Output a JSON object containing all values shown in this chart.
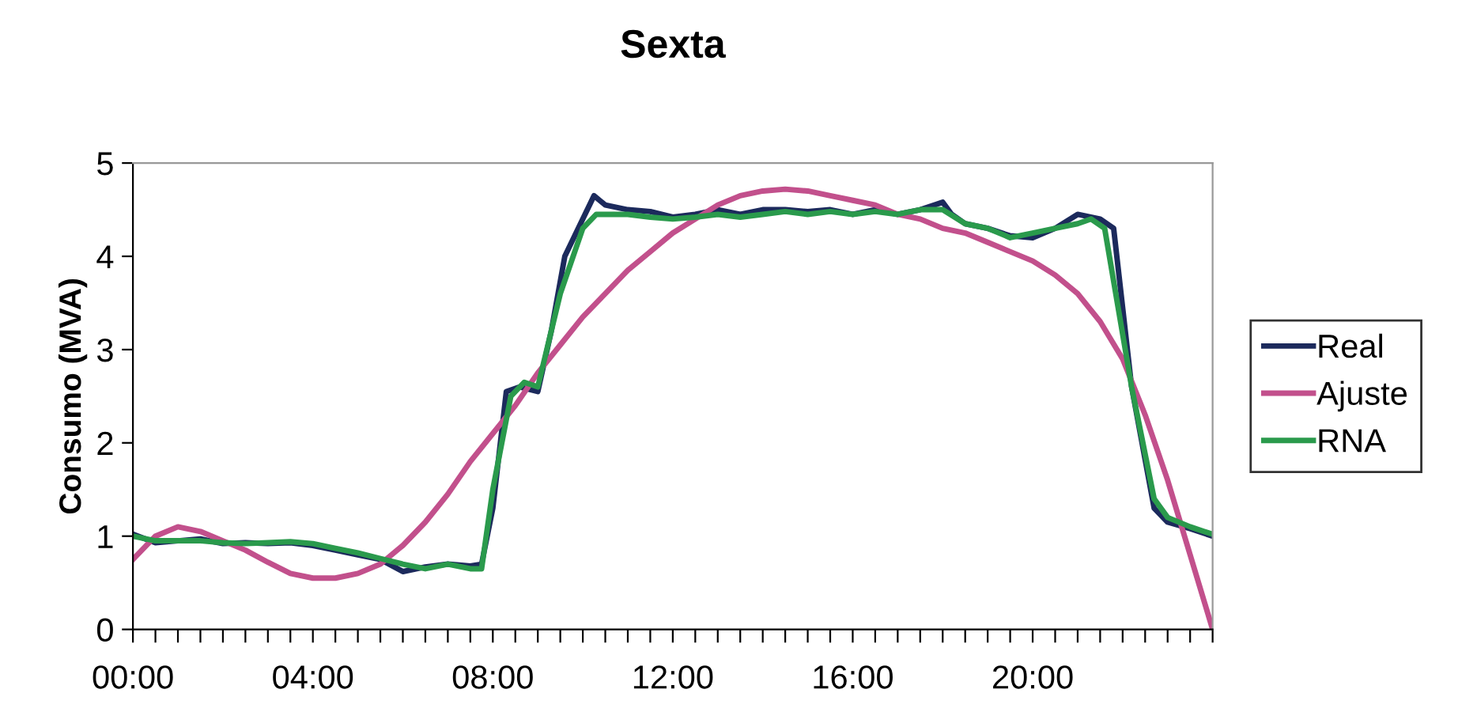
{
  "chart_data": {
    "type": "line",
    "title": "Sexta",
    "ylabel": "Consumo (MVA)",
    "xlim": [
      0,
      24
    ],
    "ylim": [
      0,
      5
    ],
    "yticks": [
      0,
      1,
      2,
      3,
      4,
      5
    ],
    "xticks": [
      {
        "value": 0,
        "label": "00:00"
      },
      {
        "value": 0.5,
        "label": null
      },
      {
        "value": 1,
        "label": null
      },
      {
        "value": 1.5,
        "label": null
      },
      {
        "value": 2,
        "label": null
      },
      {
        "value": 2.5,
        "label": null
      },
      {
        "value": 3,
        "label": null
      },
      {
        "value": 3.5,
        "label": null
      },
      {
        "value": 4,
        "label": "04:00"
      },
      {
        "value": 4.5,
        "label": null
      },
      {
        "value": 5,
        "label": null
      },
      {
        "value": 5.5,
        "label": null
      },
      {
        "value": 6,
        "label": null
      },
      {
        "value": 6.5,
        "label": null
      },
      {
        "value": 7,
        "label": null
      },
      {
        "value": 7.5,
        "label": null
      },
      {
        "value": 8,
        "label": "08:00"
      },
      {
        "value": 8.5,
        "label": null
      },
      {
        "value": 9,
        "label": null
      },
      {
        "value": 9.5,
        "label": null
      },
      {
        "value": 10,
        "label": null
      },
      {
        "value": 10.5,
        "label": null
      },
      {
        "value": 11,
        "label": null
      },
      {
        "value": 11.5,
        "label": null
      },
      {
        "value": 12,
        "label": "12:00"
      },
      {
        "value": 12.5,
        "label": null
      },
      {
        "value": 13,
        "label": null
      },
      {
        "value": 13.5,
        "label": null
      },
      {
        "value": 14,
        "label": null
      },
      {
        "value": 14.5,
        "label": null
      },
      {
        "value": 15,
        "label": null
      },
      {
        "value": 15.5,
        "label": null
      },
      {
        "value": 16,
        "label": "16:00"
      },
      {
        "value": 16.5,
        "label": null
      },
      {
        "value": 17,
        "label": null
      },
      {
        "value": 17.5,
        "label": null
      },
      {
        "value": 18,
        "label": null
      },
      {
        "value": 18.5,
        "label": null
      },
      {
        "value": 19,
        "label": null
      },
      {
        "value": 19.5,
        "label": null
      },
      {
        "value": 20,
        "label": "20:00"
      },
      {
        "value": 20.5,
        "label": null
      },
      {
        "value": 21,
        "label": null
      },
      {
        "value": 21.5,
        "label": null
      },
      {
        "value": 22,
        "label": null
      },
      {
        "value": 22.5,
        "label": null
      },
      {
        "value": 23,
        "label": null
      },
      {
        "value": 23.5,
        "label": null
      },
      {
        "value": 24,
        "label": null
      }
    ],
    "legend": "right",
    "grid": false,
    "marker": "none",
    "line_style": "solid",
    "series": [
      {
        "name": "Real",
        "color": "#1c2a5c",
        "x": [
          0,
          0.5,
          1,
          1.5,
          2,
          2.5,
          3,
          3.5,
          4,
          4.5,
          5,
          5.5,
          6,
          6.5,
          7,
          7.5,
          7.75,
          8,
          8.3,
          8.6,
          9,
          9.3,
          9.6,
          10,
          10.25,
          10.5,
          11,
          11.5,
          12,
          12.5,
          13,
          13.5,
          14,
          14.5,
          15,
          15.5,
          16,
          16.5,
          17,
          17.5,
          18,
          18.2,
          18.5,
          19,
          19.5,
          20,
          20.5,
          21,
          21.5,
          21.8,
          22.2,
          22.7,
          23,
          23.5,
          24
        ],
        "values": [
          1.02,
          0.93,
          0.95,
          0.97,
          0.92,
          0.93,
          0.92,
          0.93,
          0.9,
          0.85,
          0.8,
          0.75,
          0.62,
          0.67,
          0.7,
          0.68,
          0.7,
          1.3,
          2.55,
          2.6,
          2.55,
          3.2,
          4.0,
          4.4,
          4.65,
          4.55,
          4.5,
          4.48,
          4.42,
          4.45,
          4.5,
          4.45,
          4.5,
          4.5,
          4.48,
          4.5,
          4.45,
          4.5,
          4.45,
          4.5,
          4.58,
          4.45,
          4.35,
          4.3,
          4.22,
          4.2,
          4.3,
          4.45,
          4.4,
          4.3,
          2.6,
          1.3,
          1.15,
          1.08,
          1.0
        ]
      },
      {
        "name": "Ajuste",
        "color": "#c2508c",
        "x": [
          0,
          0.5,
          1,
          1.5,
          2,
          2.5,
          3,
          3.5,
          4,
          4.5,
          5,
          5.5,
          6,
          6.5,
          7,
          7.5,
          8,
          8.5,
          9,
          9.5,
          10,
          10.5,
          11,
          11.5,
          12,
          12.5,
          13,
          13.5,
          14,
          14.5,
          15,
          15.5,
          16,
          16.5,
          17,
          17.5,
          18,
          18.5,
          19,
          19.5,
          20,
          20.5,
          21,
          21.5,
          22,
          22.5,
          23,
          23.5,
          24
        ],
        "values": [
          0.75,
          1.0,
          1.1,
          1.05,
          0.95,
          0.85,
          0.72,
          0.6,
          0.55,
          0.55,
          0.6,
          0.7,
          0.9,
          1.15,
          1.45,
          1.8,
          2.1,
          2.4,
          2.75,
          3.05,
          3.35,
          3.6,
          3.85,
          4.05,
          4.25,
          4.4,
          4.55,
          4.65,
          4.7,
          4.72,
          4.7,
          4.65,
          4.6,
          4.55,
          4.45,
          4.4,
          4.3,
          4.25,
          4.15,
          4.05,
          3.95,
          3.8,
          3.6,
          3.3,
          2.9,
          2.3,
          1.6,
          0.8,
          0.0
        ]
      },
      {
        "name": "RNA",
        "color": "#2a9a4c",
        "x": [
          0,
          0.5,
          1,
          1.5,
          2,
          2.5,
          3,
          3.5,
          4,
          4.5,
          5,
          5.5,
          6,
          6.5,
          7,
          7.5,
          7.75,
          8,
          8.4,
          8.7,
          9,
          9.5,
          10,
          10.3,
          10.5,
          11,
          11.5,
          12,
          12.5,
          13,
          13.5,
          14,
          14.5,
          15,
          15.5,
          16,
          16.5,
          17,
          17.5,
          18,
          18.5,
          19,
          19.5,
          20,
          20.5,
          21,
          21.3,
          21.6,
          22.2,
          22.7,
          23,
          23.5,
          24
        ],
        "values": [
          1.0,
          0.95,
          0.95,
          0.95,
          0.93,
          0.92,
          0.93,
          0.94,
          0.92,
          0.87,
          0.82,
          0.76,
          0.7,
          0.65,
          0.7,
          0.65,
          0.65,
          1.5,
          2.5,
          2.65,
          2.6,
          3.6,
          4.3,
          4.45,
          4.45,
          4.45,
          4.42,
          4.4,
          4.42,
          4.45,
          4.42,
          4.45,
          4.48,
          4.45,
          4.48,
          4.45,
          4.48,
          4.45,
          4.5,
          4.5,
          4.35,
          4.3,
          4.2,
          4.25,
          4.3,
          4.35,
          4.4,
          4.3,
          2.6,
          1.4,
          1.2,
          1.1,
          1.02
        ]
      }
    ]
  }
}
